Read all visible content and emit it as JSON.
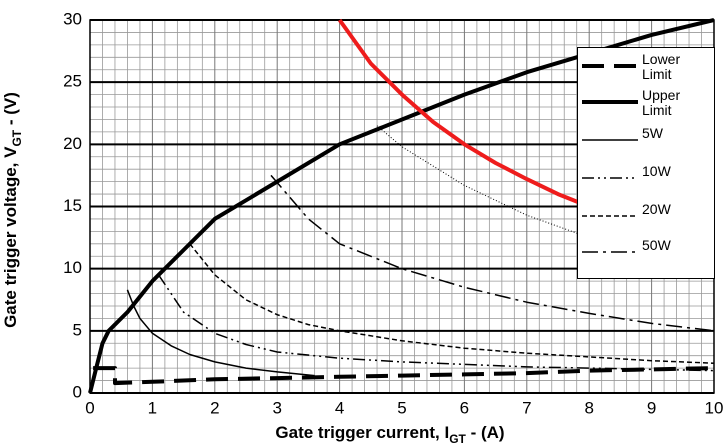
{
  "chart_data": {
    "type": "line",
    "xlabel": [
      "Gate trigger current,  I",
      "GT",
      " - (A)"
    ],
    "ylabel": [
      "Gate trigger voltage, V",
      "GT",
      " - (V)"
    ],
    "xlim": [
      0,
      10
    ],
    "ylim": [
      0,
      30
    ],
    "xticks": [
      0,
      1,
      2,
      3,
      4,
      5,
      6,
      7,
      8,
      9,
      10
    ],
    "yticks": [
      0,
      5,
      10,
      15,
      20,
      25,
      30
    ],
    "grid": true,
    "legend": "upper right",
    "series": [
      {
        "name": "Lower Limit",
        "color": "#000000",
        "width": 4,
        "dash": "22,10",
        "x": [
          0.05,
          0.4,
          0.4,
          1,
          2,
          3,
          4,
          5,
          6,
          7,
          8,
          9,
          10
        ],
        "values": [
          2,
          2,
          0.8,
          0.9,
          1.1,
          1.2,
          1.3,
          1.4,
          1.5,
          1.6,
          1.8,
          1.9,
          2.0
        ]
      },
      {
        "name": "Upper Limit",
        "color": "#000000",
        "width": 4,
        "dash": "",
        "x": [
          0,
          0.1,
          0.2,
          0.3,
          0.6,
          1,
          1.5,
          2,
          2.5,
          3,
          4,
          5,
          6,
          7,
          8,
          9,
          10
        ],
        "values": [
          0,
          2,
          4,
          5,
          6.5,
          9,
          11.5,
          14,
          15.5,
          17,
          20,
          22,
          24,
          25.8,
          27.3,
          28.8,
          30
        ]
      },
      {
        "name": "5W",
        "color": "#000000",
        "width": 1.5,
        "dash": "",
        "x": [
          0.6,
          0.7,
          0.8,
          1,
          1.3,
          1.6,
          2,
          2.5,
          3,
          3.6
        ],
        "values": [
          8.3,
          7,
          6,
          4.8,
          3.8,
          3.1,
          2.5,
          2,
          1.7,
          1.4
        ]
      },
      {
        "name": "10W",
        "color": "#000000",
        "width": 1.5,
        "dash": "12,4,2,4,2,4",
        "x": [
          1.1,
          1.5,
          2,
          2.5,
          3,
          4,
          5,
          6,
          7,
          8,
          9,
          10
        ],
        "values": [
          9.5,
          6.5,
          4.8,
          3.9,
          3.3,
          2.8,
          2.5,
          2.3,
          2.1,
          2.0,
          1.9,
          1.8
        ]
      },
      {
        "name": "20W",
        "color": "#000000",
        "width": 1.5,
        "dash": "5,3",
        "x": [
          1.6,
          2,
          2.5,
          3,
          3.5,
          4,
          5,
          6,
          7,
          8,
          9,
          10
        ],
        "values": [
          12,
          9.5,
          7.5,
          6.3,
          5.5,
          5,
          4.2,
          3.6,
          3.2,
          2.9,
          2.6,
          2.4
        ]
      },
      {
        "name": "50W",
        "color": "#000000",
        "width": 1.5,
        "dash": "16,5,3,5",
        "x": [
          2.9,
          3.5,
          4,
          5,
          6,
          7,
          8,
          9,
          10
        ],
        "values": [
          17.5,
          14,
          12,
          10,
          8.5,
          7.3,
          6.4,
          5.6,
          5
        ]
      },
      {
        "color": "#000000",
        "width": 1,
        "dash": "1,2",
        "x": [
          4.6,
          5,
          6,
          7,
          8,
          8.3
        ],
        "values": [
          21.5,
          19.8,
          16.7,
          14.3,
          12.5,
          12.1
        ]
      },
      {
        "color": "#ee1c1c",
        "width": 4,
        "dash": "",
        "x": [
          4.0,
          4.5,
          5,
          5.5,
          6,
          6.5,
          7,
          7.5,
          8
        ],
        "values": [
          30,
          26.5,
          24,
          21.8,
          20,
          18.5,
          17.2,
          16,
          15
        ]
      }
    ]
  }
}
